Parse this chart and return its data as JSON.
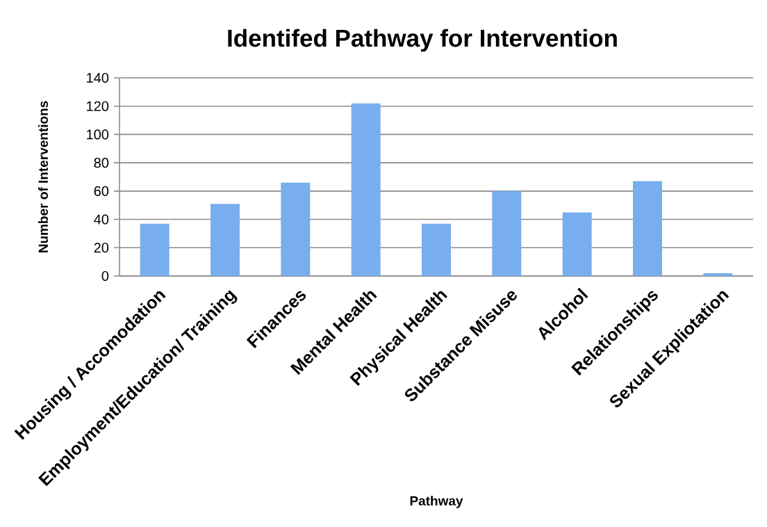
{
  "chart_data": {
    "type": "bar",
    "title": "Identifed Pathway for Intervention",
    "xlabel": "Pathway",
    "ylabel": "Number of Interventions",
    "categories": [
      "Housing / Accomodation",
      "Employment/Education/ Training",
      "Finances",
      "Mental Health",
      "Physical Health",
      "Substance Misuse",
      "Alcohol",
      "Relationships",
      "Sexual Expliotation"
    ],
    "values": [
      37,
      51,
      66,
      122,
      37,
      60,
      45,
      67,
      2
    ],
    "color": "#78aeed",
    "ylim": [
      0,
      140
    ],
    "yticks": [
      0,
      20,
      40,
      60,
      80,
      100,
      120,
      140
    ],
    "grid": "y"
  }
}
